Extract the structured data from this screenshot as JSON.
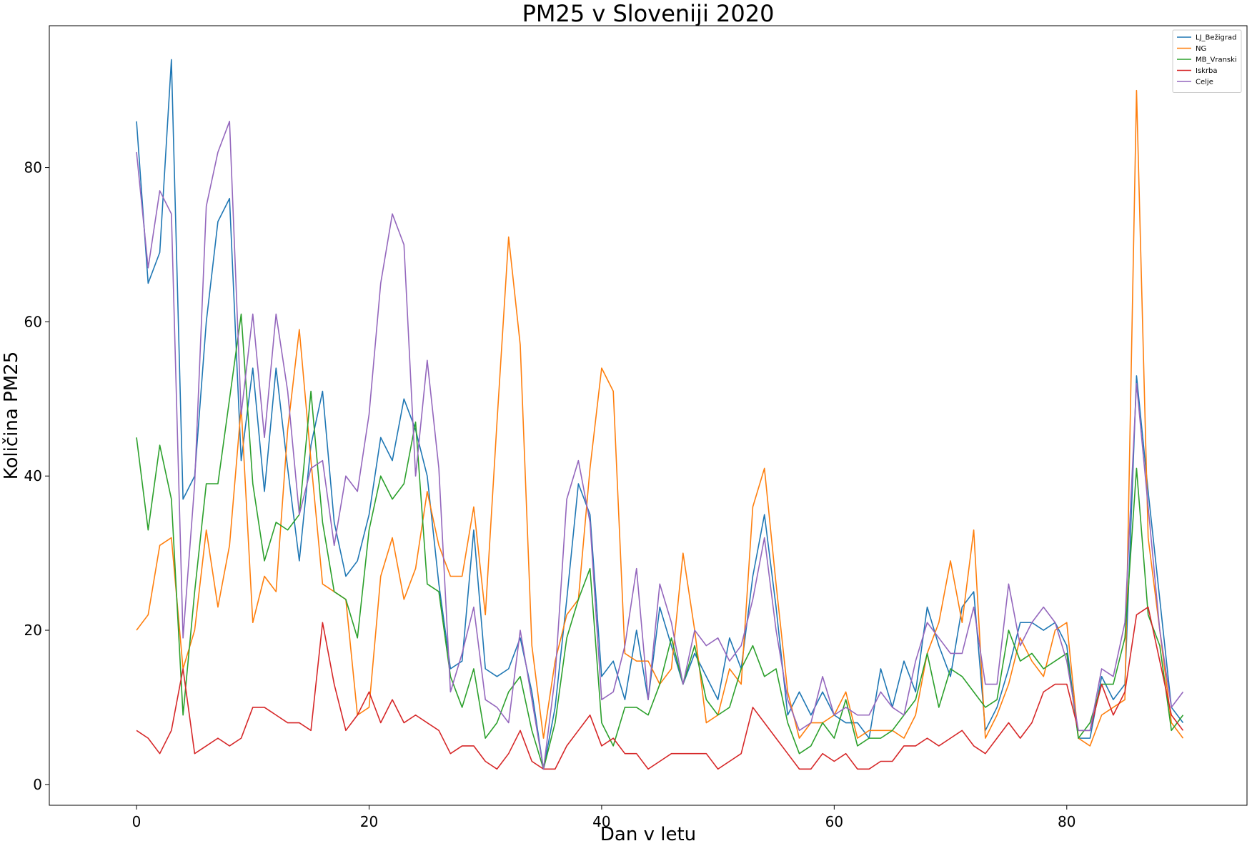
{
  "chart_data": {
    "type": "line",
    "title": "PM25 v Sloveniji 2020",
    "xlabel": "Dan v letu",
    "ylabel": "Količina PM25",
    "xlim": [
      -7.5,
      95.5
    ],
    "ylim": [
      -2.7,
      98.4
    ],
    "xticks": [
      0,
      20,
      40,
      60,
      80
    ],
    "yticks": [
      0,
      20,
      40,
      60,
      80
    ],
    "grid": false,
    "legend_position": "top-right",
    "x_start": 0,
    "series": [
      {
        "name": "LJ_Bežigrad",
        "color": "#1f77b4",
        "values": [
          86,
          65,
          69,
          94,
          37,
          40,
          60,
          73,
          76,
          42,
          54,
          38,
          54,
          41,
          29,
          44,
          51,
          34,
          27,
          29,
          35,
          45,
          42,
          50,
          46,
          40,
          26,
          15,
          16,
          33,
          15,
          14,
          15,
          19,
          12,
          2,
          10,
          24,
          39,
          35,
          14,
          16,
          11,
          20,
          11,
          23,
          18,
          13,
          17,
          14,
          11,
          19,
          15,
          27,
          35,
          23,
          9,
          12,
          9,
          12,
          9,
          8,
          8,
          6,
          15,
          10,
          16,
          12,
          23,
          18,
          14,
          23,
          25,
          7,
          10,
          15,
          21,
          21,
          20,
          21,
          18,
          6,
          6,
          14,
          11,
          13,
          53,
          38,
          24,
          10,
          8
        ]
      },
      {
        "name": "NG",
        "color": "#ff7f0e",
        "values": [
          20,
          22,
          31,
          32,
          15,
          20,
          33,
          23,
          31,
          49,
          21,
          27,
          25,
          46,
          59,
          42,
          26,
          25,
          24,
          9,
          10,
          27,
          32,
          24,
          28,
          38,
          31,
          27,
          27,
          36,
          22,
          47,
          71,
          57,
          18,
          6,
          16,
          22,
          24,
          41,
          54,
          51,
          17,
          16,
          16,
          13,
          15,
          30,
          20,
          8,
          9,
          15,
          13,
          36,
          41,
          26,
          12,
          6,
          8,
          8,
          9,
          12,
          6,
          7,
          7,
          7,
          6,
          9,
          17,
          21,
          29,
          21,
          33,
          6,
          9,
          13,
          19,
          16,
          14,
          20,
          21,
          6,
          5,
          9,
          10,
          11,
          90,
          32,
          20,
          8,
          6
        ]
      },
      {
        "name": "MB_Vranski",
        "color": "#2ca02c",
        "values": [
          45,
          33,
          44,
          37,
          9,
          25,
          39,
          39,
          50,
          61,
          39,
          29,
          34,
          33,
          35,
          51,
          34,
          25,
          24,
          19,
          33,
          40,
          37,
          39,
          47,
          26,
          25,
          14,
          10,
          15,
          6,
          8,
          12,
          14,
          7,
          2,
          8,
          19,
          24,
          28,
          8,
          5,
          10,
          10,
          9,
          13,
          19,
          13,
          18,
          11,
          9,
          10,
          15,
          18,
          14,
          15,
          8,
          4,
          5,
          8,
          6,
          11,
          5,
          6,
          6,
          7,
          9,
          11,
          17,
          10,
          15,
          14,
          12,
          10,
          11,
          20,
          16,
          17,
          15,
          16,
          17,
          6,
          8,
          13,
          13,
          19,
          41,
          22,
          18,
          7,
          9
        ]
      },
      {
        "name": "Iskrba",
        "color": "#d62728",
        "values": [
          7,
          6,
          4,
          7,
          15,
          4,
          5,
          6,
          5,
          6,
          10,
          10,
          9,
          8,
          8,
          7,
          21,
          13,
          7,
          9,
          12,
          8,
          11,
          8,
          9,
          8,
          7,
          4,
          5,
          5,
          3,
          2,
          4,
          7,
          3,
          2,
          2,
          5,
          7,
          9,
          5,
          6,
          4,
          4,
          2,
          3,
          4,
          4,
          4,
          4,
          2,
          3,
          4,
          10,
          8,
          6,
          4,
          2,
          2,
          4,
          3,
          4,
          2,
          2,
          3,
          3,
          5,
          5,
          6,
          5,
          6,
          7,
          5,
          4,
          6,
          8,
          6,
          8,
          12,
          13,
          13,
          7,
          7,
          13,
          9,
          12,
          22,
          23,
          16,
          9,
          7
        ]
      },
      {
        "name": "Celje",
        "color": "#9467bd",
        "values": [
          82,
          67,
          77,
          74,
          19,
          39,
          75,
          82,
          86,
          48,
          61,
          45,
          61,
          51,
          35,
          41,
          42,
          31,
          40,
          38,
          48,
          65,
          74,
          70,
          40,
          55,
          41,
          12,
          17,
          23,
          11,
          10,
          8,
          20,
          11,
          2,
          14,
          37,
          42,
          34,
          11,
          12,
          18,
          28,
          11,
          26,
          21,
          13,
          20,
          18,
          19,
          16,
          18,
          24,
          32,
          20,
          11,
          7,
          8,
          14,
          9,
          10,
          9,
          9,
          12,
          10,
          9,
          16,
          21,
          19,
          17,
          17,
          23,
          13,
          13,
          26,
          18,
          21,
          23,
          21,
          16,
          7,
          7,
          15,
          14,
          21,
          52,
          36,
          20,
          10,
          12
        ]
      }
    ]
  }
}
